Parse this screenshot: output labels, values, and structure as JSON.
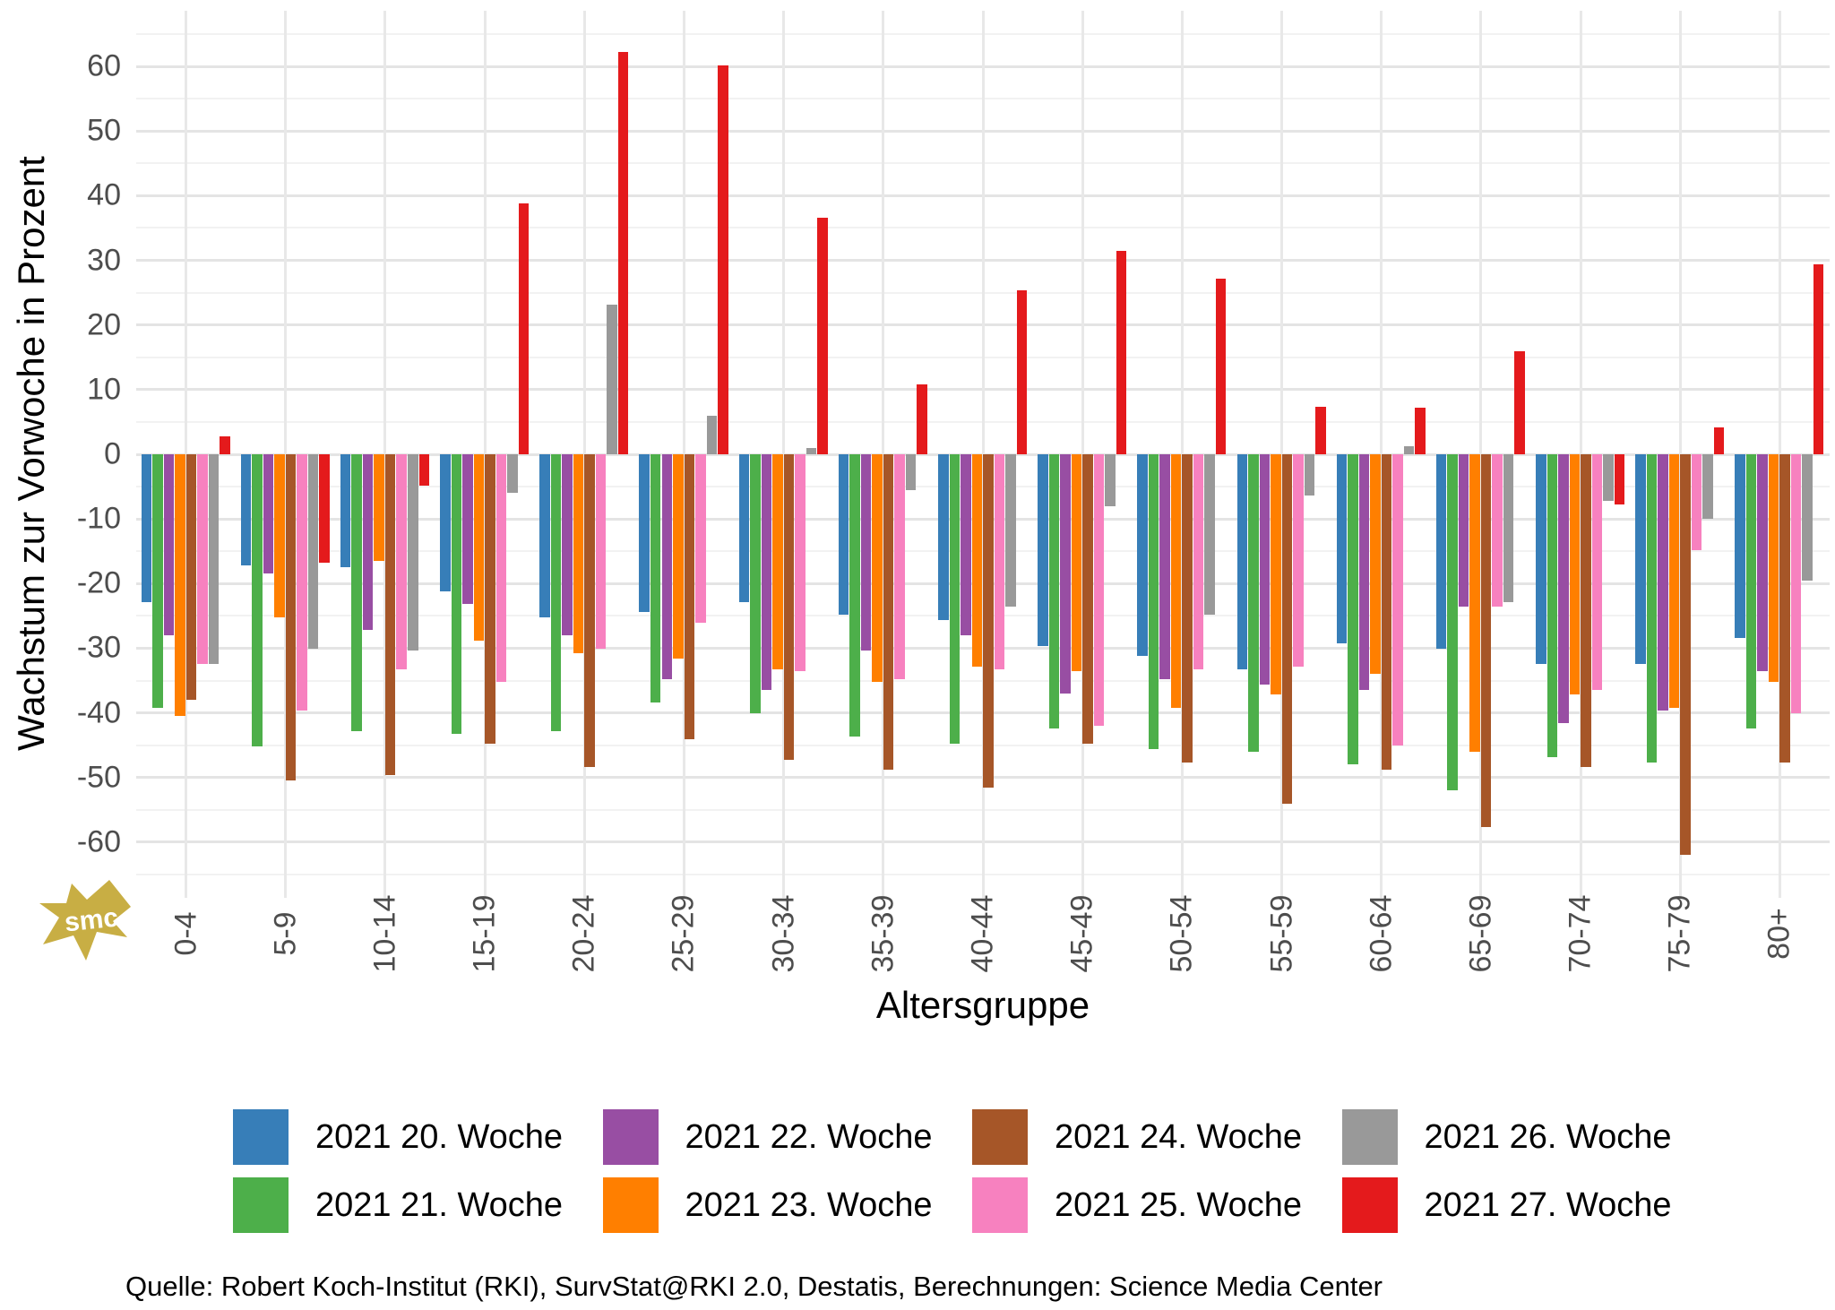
{
  "figure": {
    "y_axis_title": "Wachstum zur Vorwoche in Prozent",
    "x_axis_title": "Altersgruppe",
    "source_line": "Quelle: Robert Koch-Institut (RKI), SurvStat@RKI 2.0, Destatis, Berechnungen: Science Media Center",
    "logo_text": "smc",
    "logo_color": "#C8AE44"
  },
  "chart_data": {
    "type": "bar",
    "orientation": "grouped-vertical",
    "title": "",
    "xlabel": "Altersgruppe",
    "ylabel": "Wachstum zur Vorwoche in Prozent",
    "categories": [
      "0-4",
      "5-9",
      "10-14",
      "15-19",
      "20-24",
      "25-29",
      "30-34",
      "35-39",
      "40-44",
      "45-49",
      "50-54",
      "55-59",
      "60-64",
      "65-69",
      "70-74",
      "75-79",
      "80+"
    ],
    "series": [
      {
        "name": "2021 20. Woche",
        "color": "#377EB8",
        "values": [
          -22.8,
          -17.2,
          -17.5,
          -21.2,
          -25.2,
          -24.4,
          -22.8,
          -24.8,
          -25.6,
          -29.6,
          -31.2,
          -33.2,
          -29.2,
          -30.0,
          -32.4,
          -32.4,
          -28.4
        ]
      },
      {
        "name": "2021 21. Woche",
        "color": "#4DAF4A",
        "values": [
          -39.2,
          -45.2,
          -42.8,
          -43.2,
          -42.8,
          -38.4,
          -40.0,
          -43.6,
          -44.8,
          -42.4,
          -45.6,
          -46.0,
          -48.0,
          -52.0,
          -46.8,
          -47.6,
          -42.4
        ]
      },
      {
        "name": "2021 22. Woche",
        "color": "#984EA3",
        "values": [
          -28.0,
          -18.4,
          -27.2,
          -23.2,
          -28.0,
          -34.8,
          -36.4,
          -30.4,
          -28.0,
          -37.0,
          -34.8,
          -35.6,
          -36.4,
          -23.6,
          -41.6,
          -39.6,
          -33.6
        ]
      },
      {
        "name": "2021 23. Woche",
        "color": "#FF7F00",
        "values": [
          -40.4,
          -25.2,
          -16.5,
          -28.8,
          -30.8,
          -31.6,
          -33.2,
          -35.2,
          -32.8,
          -33.6,
          -39.2,
          -37.2,
          -34.0,
          -46.0,
          -37.2,
          -39.2,
          -35.2
        ]
      },
      {
        "name": "2021 24. Woche",
        "color": "#A65628",
        "values": [
          -38.0,
          -50.4,
          -49.6,
          -44.8,
          -48.4,
          -44.0,
          -47.2,
          -48.8,
          -51.5,
          -44.8,
          -47.6,
          -54.0,
          -48.8,
          -57.6,
          -48.4,
          -62.0,
          -47.6
        ]
      },
      {
        "name": "2021 25. Woche",
        "color": "#F781BF",
        "values": [
          -32.4,
          -39.6,
          -33.2,
          -35.2,
          -30.0,
          -26.0,
          -33.6,
          -34.8,
          -33.2,
          -42.0,
          -33.2,
          -32.8,
          -45.0,
          -23.6,
          -36.5,
          -14.8,
          -40.0
        ]
      },
      {
        "name": "2021 26. Woche",
        "color": "#999999",
        "values": [
          -32.4,
          -30.0,
          -30.4,
          -6.0,
          23.2,
          6.0,
          1.0,
          -5.6,
          -23.6,
          -8.0,
          -24.8,
          -6.4,
          1.2,
          -22.8,
          -7.2,
          -10.0,
          -19.6
        ]
      },
      {
        "name": "2021 27. Woche",
        "color": "#E41A1C",
        "values": [
          2.8,
          -16.8,
          -4.8,
          38.8,
          62.3,
          60.2,
          36.6,
          10.8,
          25.4,
          31.4,
          27.2,
          7.4,
          7.2,
          16.0,
          -7.8,
          4.2,
          29.4
        ]
      }
    ],
    "legend_order": [
      0,
      2,
      4,
      6,
      1,
      3,
      5,
      7
    ],
    "legend_position": "bottom",
    "y_ticks": [
      60,
      50,
      40,
      30,
      20,
      10,
      0,
      -10,
      -20,
      -30,
      -40,
      -50,
      -60
    ],
    "ylim": [
      -68.6,
      68.6
    ],
    "grid": {
      "major_every": 10,
      "minor_every": 5,
      "vertical": "category-centers"
    }
  }
}
